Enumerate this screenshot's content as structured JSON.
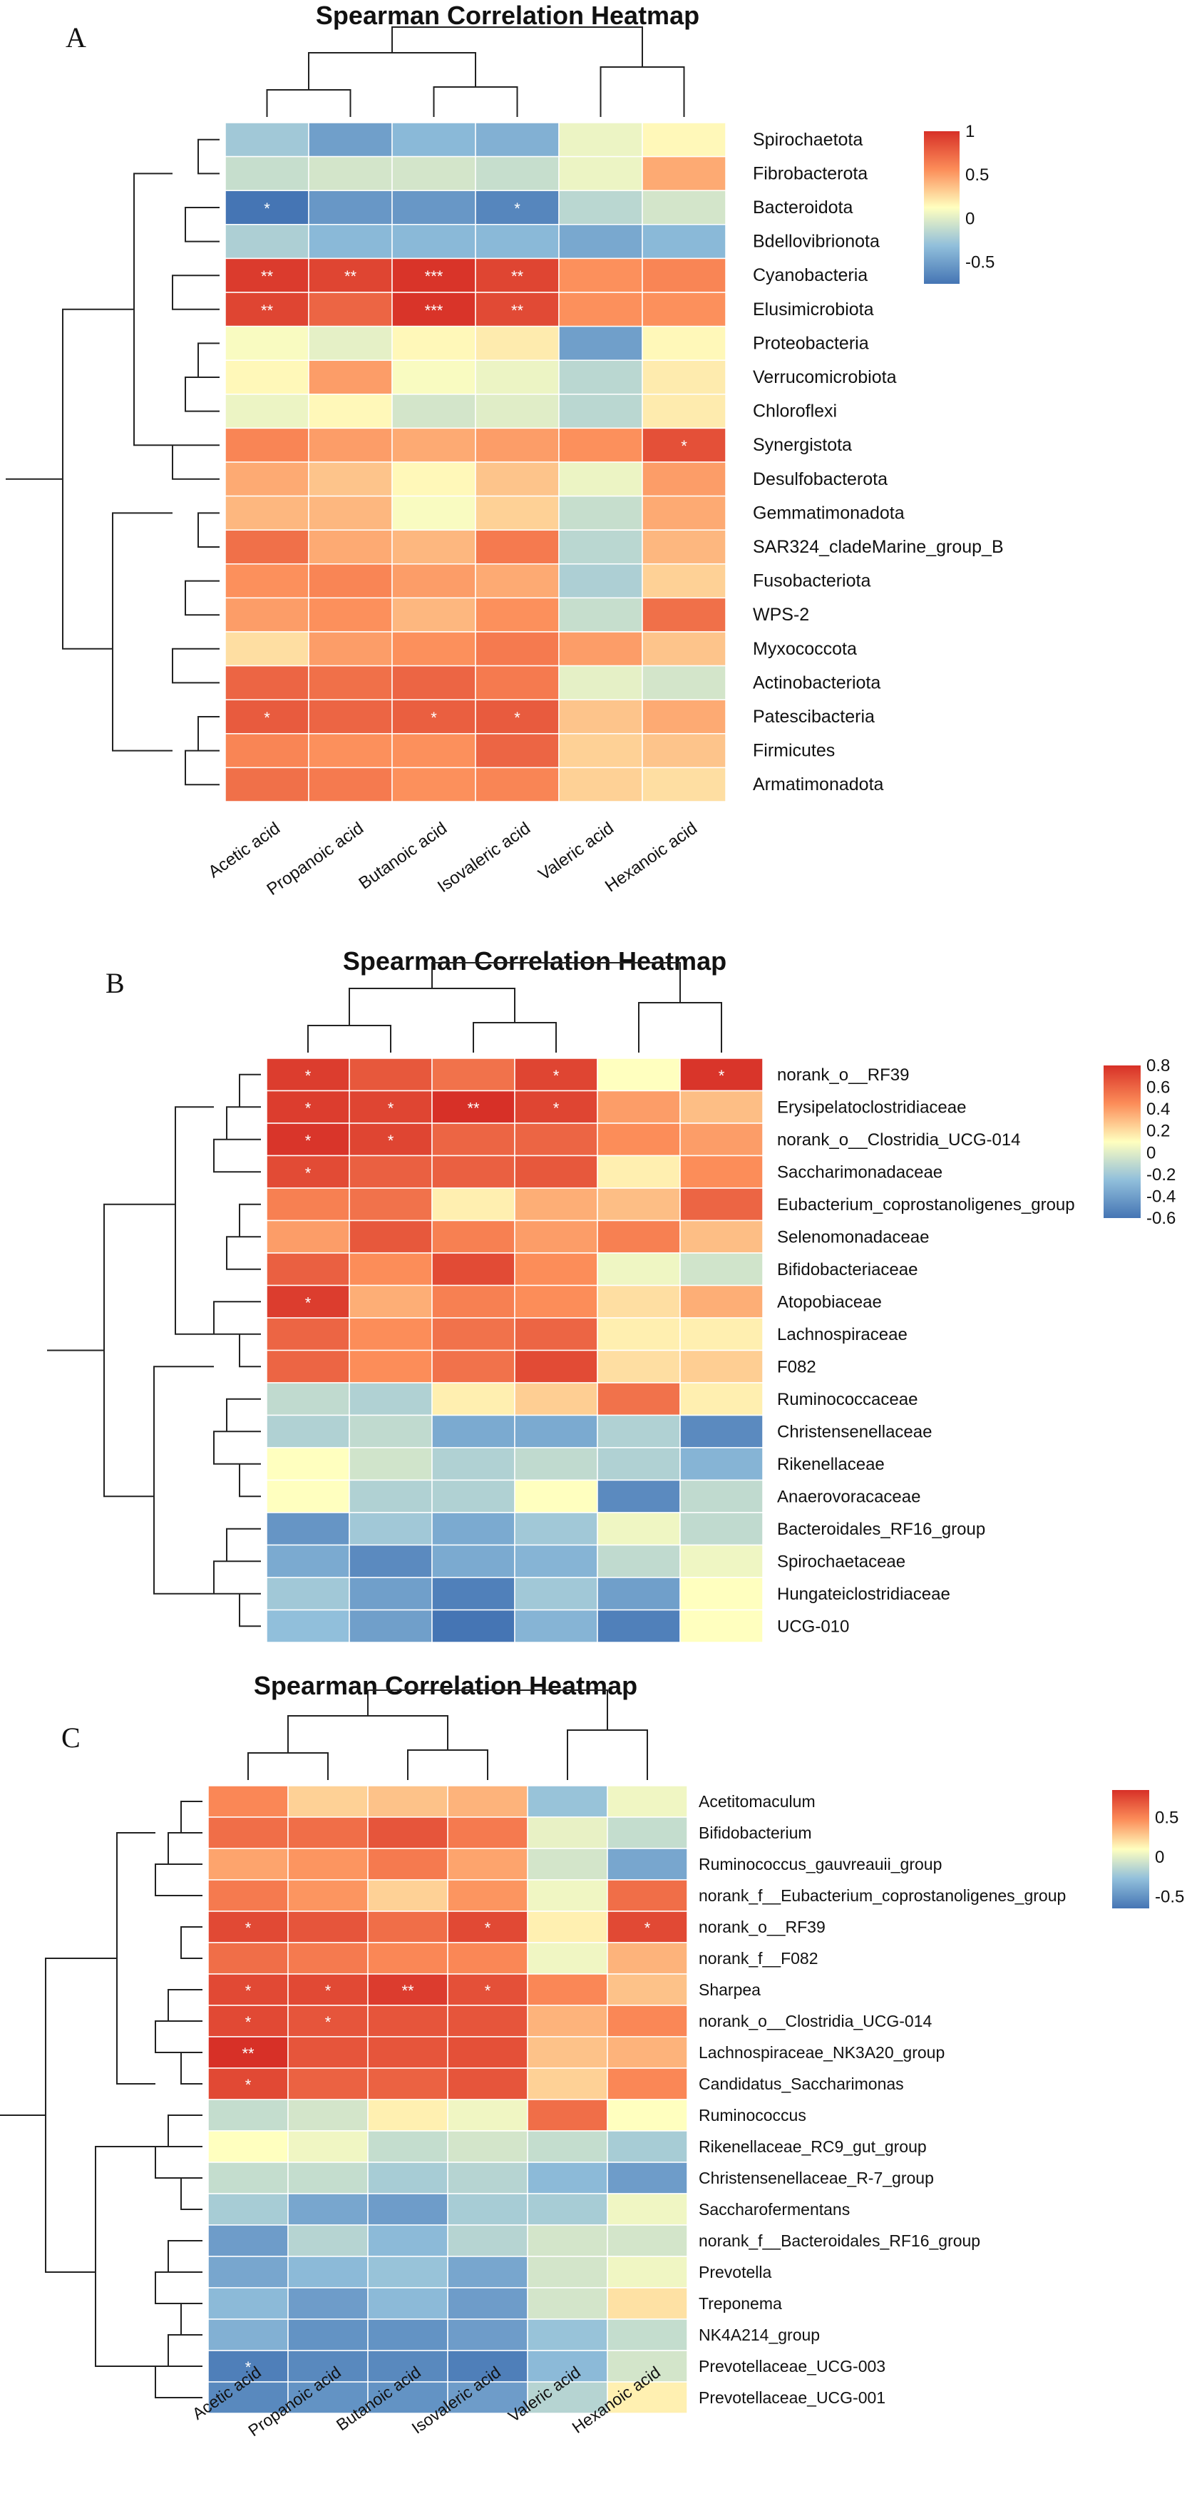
{
  "chart_data": [
    {
      "type": "heatmap",
      "panel_label": "A",
      "title": "Spearman Correlation Heatmap",
      "columns": [
        "Acetic acid",
        "Propanoic acid",
        "Butanoic acid",
        "Isovaleric acid",
        "Valeric acid",
        "Hexanoic acid"
      ],
      "rows": [
        "Spirochaetota",
        "Fibrobacterota",
        "Bacteroidota",
        "Bdellovibrionota",
        "Cyanobacteria",
        "Elusimicrobiota",
        "Proteobacteria",
        "Verrucomicrobiota",
        "Chloroflexi",
        "Synergistota",
        "Desulfobacterota",
        "Gemmatimonadota",
        "SAR324_cladeMarine_group_B",
        "Fusobacteriota",
        "WPS-2",
        "Myxococcota",
        "Actinobacteriota",
        "Patescibacteria",
        "Firmicutes",
        "Armatimonadota"
      ],
      "values": [
        [
          -0.25,
          -0.5,
          -0.35,
          -0.4,
          0.05,
          0.15
        ],
        [
          -0.1,
          -0.05,
          -0.05,
          -0.1,
          0.05,
          0.45
        ],
        [
          -0.75,
          -0.55,
          -0.55,
          -0.65,
          -0.15,
          -0.05
        ],
        [
          -0.2,
          -0.35,
          -0.35,
          -0.35,
          -0.45,
          -0.35
        ],
        [
          0.95,
          0.9,
          0.98,
          0.9,
          0.55,
          0.6
        ],
        [
          0.9,
          0.75,
          0.98,
          0.88,
          0.55,
          0.55
        ],
        [
          0.1,
          0.02,
          0.15,
          0.2,
          -0.5,
          0.15
        ],
        [
          0.15,
          0.5,
          0.1,
          0.05,
          -0.15,
          0.2
        ],
        [
          0.05,
          0.15,
          -0.05,
          0.0,
          -0.15,
          0.2
        ],
        [
          0.6,
          0.5,
          0.45,
          0.5,
          0.55,
          0.85
        ],
        [
          0.45,
          0.35,
          0.15,
          0.35,
          0.05,
          0.5
        ],
        [
          0.4,
          0.4,
          0.1,
          0.3,
          -0.1,
          0.45
        ],
        [
          0.7,
          0.45,
          0.4,
          0.65,
          -0.15,
          0.4
        ],
        [
          0.55,
          0.6,
          0.5,
          0.45,
          -0.2,
          0.3
        ],
        [
          0.5,
          0.55,
          0.4,
          0.55,
          -0.1,
          0.7
        ],
        [
          0.25,
          0.5,
          0.55,
          0.65,
          0.5,
          0.35
        ],
        [
          0.75,
          0.7,
          0.75,
          0.65,
          0.02,
          -0.05
        ],
        [
          0.8,
          0.75,
          0.78,
          0.8,
          0.35,
          0.45
        ],
        [
          0.6,
          0.55,
          0.55,
          0.75,
          0.3,
          0.35
        ],
        [
          0.7,
          0.65,
          0.55,
          0.6,
          0.3,
          0.25
        ]
      ],
      "significance": [
        [
          "",
          "",
          "",
          "",
          "",
          ""
        ],
        [
          "",
          "",
          "",
          "",
          "",
          ""
        ],
        [
          "*",
          "",
          "",
          "*",
          "",
          ""
        ],
        [
          "",
          "",
          "",
          "",
          "",
          ""
        ],
        [
          "**",
          "**",
          "***",
          "**",
          "",
          ""
        ],
        [
          "**",
          "",
          "***",
          "**",
          "",
          ""
        ],
        [
          "",
          "",
          "",
          "",
          "",
          ""
        ],
        [
          "",
          "",
          "",
          "",
          "",
          ""
        ],
        [
          "",
          "",
          "",
          "",
          "",
          ""
        ],
        [
          "",
          "",
          "",
          "",
          "",
          "*"
        ],
        [
          "",
          "",
          "",
          "",
          "",
          ""
        ],
        [
          "",
          "",
          "",
          "",
          "",
          ""
        ],
        [
          "",
          "",
          "",
          "",
          "",
          ""
        ],
        [
          "",
          "",
          "",
          "",
          "",
          ""
        ],
        [
          "",
          "",
          "",
          "",
          "",
          ""
        ],
        [
          "",
          "",
          "",
          "",
          "",
          ""
        ],
        [
          "",
          "",
          "",
          "",
          "",
          ""
        ],
        [
          "*",
          "",
          "*",
          "*",
          "",
          ""
        ],
        [
          "",
          "",
          "",
          "",
          "",
          ""
        ],
        [
          "",
          "",
          "",
          "",
          "",
          ""
        ]
      ],
      "scale": {
        "min": -0.75,
        "max": 1.0,
        "ticks": [
          "1",
          "0.5",
          "0",
          "-0.5"
        ],
        "tick_values": [
          1,
          0.5,
          0,
          -0.5
        ]
      }
    },
    {
      "type": "heatmap",
      "panel_label": "B",
      "title": "Spearman Correlation Heatmap",
      "columns": [
        "Acetic acid",
        "Propanoic acid",
        "Butanoic acid",
        "Isovaleric acid",
        "Valeric acid",
        "Hexanoic acid"
      ],
      "rows": [
        "norank_o__RF39",
        "Erysipelatoclostridiaceae",
        "norank_o__Clostridia_UCG-014",
        "Saccharimonadaceae",
        "Eubacterium_coprostanoligenes_group",
        "Selenomonadaceae",
        "Bifidobacteriaceae",
        "Atopobiaceae",
        "Lachnospiraceae",
        "F082",
        "Ruminococcaceae",
        "Christensenellaceae",
        "Rikenellaceae",
        "Anaerovoracaceae",
        "Bacteroidales_RF16_group",
        "Spirochaetaceae",
        "Hungateiclostridiaceae",
        "UCG-010"
      ],
      "values": [
        [
          0.75,
          0.65,
          0.55,
          0.72,
          0.1,
          0.78
        ],
        [
          0.75,
          0.72,
          0.82,
          0.72,
          0.4,
          0.3
        ],
        [
          0.78,
          0.72,
          0.6,
          0.6,
          0.45,
          0.4
        ],
        [
          0.7,
          0.62,
          0.62,
          0.65,
          0.15,
          0.45
        ],
        [
          0.5,
          0.55,
          0.15,
          0.35,
          0.3,
          0.6
        ],
        [
          0.4,
          0.65,
          0.5,
          0.4,
          0.5,
          0.3
        ],
        [
          0.62,
          0.45,
          0.7,
          0.45,
          0.05,
          -0.05
        ],
        [
          0.75,
          0.35,
          0.5,
          0.45,
          0.2,
          0.35
        ],
        [
          0.6,
          0.45,
          0.55,
          0.6,
          0.15,
          0.15
        ],
        [
          0.6,
          0.45,
          0.55,
          0.7,
          0.2,
          0.25
        ],
        [
          -0.1,
          -0.15,
          0.15,
          0.25,
          0.55,
          0.15
        ],
        [
          -0.15,
          -0.1,
          -0.35,
          -0.35,
          -0.15,
          -0.5
        ],
        [
          0.1,
          -0.05,
          -0.15,
          -0.1,
          -0.15,
          -0.3
        ],
        [
          0.1,
          -0.15,
          -0.15,
          0.1,
          -0.5,
          -0.1
        ],
        [
          -0.45,
          -0.2,
          -0.35,
          -0.2,
          0.05,
          -0.1
        ],
        [
          -0.35,
          -0.5,
          -0.35,
          -0.3,
          -0.1,
          0.05
        ],
        [
          -0.2,
          -0.4,
          -0.55,
          -0.2,
          -0.4,
          0.1
        ],
        [
          -0.25,
          -0.4,
          -0.6,
          -0.3,
          -0.55,
          0.1
        ]
      ],
      "significance": [
        [
          "*",
          "",
          "",
          "*",
          "",
          "*"
        ],
        [
          "*",
          "*",
          "**",
          "*",
          "",
          ""
        ],
        [
          "*",
          "*",
          "",
          "",
          "",
          ""
        ],
        [
          "*",
          "",
          "",
          "",
          "",
          ""
        ],
        [
          "",
          "",
          "",
          "",
          "",
          ""
        ],
        [
          "",
          "",
          "",
          "",
          "",
          ""
        ],
        [
          "",
          "",
          "",
          "",
          "",
          ""
        ],
        [
          "*",
          "",
          "",
          "",
          "",
          ""
        ],
        [
          "",
          "",
          "",
          "",
          "",
          ""
        ],
        [
          "",
          "",
          "",
          "",
          "",
          ""
        ],
        [
          "",
          "",
          "",
          "",
          "",
          ""
        ],
        [
          "",
          "",
          "",
          "",
          "",
          ""
        ],
        [
          "",
          "",
          "",
          "",
          "",
          ""
        ],
        [
          "",
          "",
          "",
          "",
          "",
          ""
        ],
        [
          "",
          "",
          "",
          "",
          "",
          ""
        ],
        [
          "",
          "",
          "",
          "",
          "",
          ""
        ],
        [
          "",
          "",
          "",
          "",
          "",
          ""
        ],
        [
          "",
          "",
          "",
          "",
          "",
          ""
        ]
      ],
      "scale": {
        "min": -0.6,
        "max": 0.8,
        "ticks": [
          "0.8",
          "0.6",
          "0.4",
          "0.2",
          "0",
          "-0.2",
          "-0.4",
          "-0.6"
        ],
        "tick_values": [
          0.8,
          0.6,
          0.4,
          0.2,
          0,
          -0.2,
          -0.4,
          -0.6
        ]
      }
    },
    {
      "type": "heatmap",
      "panel_label": "C",
      "title": "Spearman Correlation Heatmap",
      "columns": [
        "Acetic acid",
        "Propanoic acid",
        "Butanoic acid",
        "Isovaleric acid",
        "Valeric acid",
        "Hexanoic acid"
      ],
      "rows": [
        "Acetitomaculum",
        "Bifidobacterium",
        "Ruminococcus_gauvreauii_group",
        "norank_f__Eubacterium_coprostanoligenes_group",
        "norank_o__RF39",
        "norank_f__F082",
        "Sharpea",
        "norank_o__Clostridia_UCG-014",
        "Lachnospiraceae_NK3A20_group",
        "Candidatus_Saccharimonas",
        "Ruminococcus",
        "Rikenellaceae_RC9_gut_group",
        "Christensenellaceae_R-7_group",
        "Saccharofermentans",
        "norank_f__Bacteroidales_RF16_group",
        "Prevotella",
        "Treponema",
        "NK4A214_group",
        "Prevotellaceae_UCG-003",
        "Prevotellaceae_UCG-001"
      ],
      "values": [
        [
          0.5,
          0.25,
          0.3,
          0.35,
          -0.25,
          0.05
        ],
        [
          0.6,
          0.6,
          0.7,
          0.55,
          0.02,
          -0.1
        ],
        [
          0.4,
          0.45,
          0.55,
          0.4,
          -0.05,
          -0.4
        ],
        [
          0.55,
          0.45,
          0.25,
          0.45,
          0.05,
          0.6
        ],
        [
          0.75,
          0.7,
          0.6,
          0.75,
          0.15,
          0.75
        ],
        [
          0.6,
          0.55,
          0.5,
          0.5,
          0.05,
          0.35
        ],
        [
          0.75,
          0.75,
          0.8,
          0.72,
          0.5,
          0.3
        ],
        [
          0.75,
          0.7,
          0.7,
          0.7,
          0.35,
          0.5
        ],
        [
          0.85,
          0.7,
          0.7,
          0.72,
          0.3,
          0.35
        ],
        [
          0.75,
          0.65,
          0.65,
          0.7,
          0.25,
          0.5
        ],
        [
          -0.1,
          -0.05,
          0.15,
          0.05,
          0.6,
          0.1
        ],
        [
          0.1,
          0.05,
          -0.1,
          -0.05,
          -0.1,
          -0.2
        ],
        [
          -0.1,
          -0.1,
          -0.2,
          -0.15,
          -0.3,
          -0.45
        ],
        [
          -0.2,
          -0.4,
          -0.45,
          -0.2,
          -0.2,
          0.05
        ],
        [
          -0.45,
          -0.15,
          -0.3,
          -0.15,
          -0.05,
          -0.05
        ],
        [
          -0.4,
          -0.3,
          -0.25,
          -0.4,
          -0.05,
          0.05
        ],
        [
          -0.3,
          -0.45,
          -0.3,
          -0.45,
          -0.05,
          0.2
        ],
        [
          -0.35,
          -0.5,
          -0.5,
          -0.45,
          -0.25,
          -0.1
        ],
        [
          -0.6,
          -0.55,
          -0.55,
          -0.6,
          -0.3,
          -0.05
        ],
        [
          -0.55,
          -0.5,
          -0.5,
          -0.45,
          -0.15,
          0.15
        ]
      ],
      "significance": [
        [
          "",
          "",
          "",
          "",
          "",
          ""
        ],
        [
          "",
          "",
          "",
          "",
          "",
          ""
        ],
        [
          "",
          "",
          "",
          "",
          "",
          ""
        ],
        [
          "",
          "",
          "",
          "",
          "",
          ""
        ],
        [
          "*",
          "",
          "",
          "*",
          "",
          "*"
        ],
        [
          "",
          "",
          "",
          "",
          "",
          ""
        ],
        [
          "*",
          "*",
          "**",
          "*",
          "",
          ""
        ],
        [
          "*",
          "*",
          "",
          "",
          "",
          ""
        ],
        [
          "**",
          "",
          "",
          "",
          "",
          ""
        ],
        [
          "*",
          "",
          "",
          "",
          "",
          ""
        ],
        [
          "",
          "",
          "",
          "",
          "",
          ""
        ],
        [
          "",
          "",
          "",
          "",
          "",
          ""
        ],
        [
          "",
          "",
          "",
          "",
          "",
          ""
        ],
        [
          "",
          "",
          "",
          "",
          "",
          ""
        ],
        [
          "",
          "",
          "",
          "",
          "",
          ""
        ],
        [
          "",
          "",
          "",
          "",
          "",
          ""
        ],
        [
          "",
          "",
          "",
          "",
          "",
          ""
        ],
        [
          "",
          "",
          "",
          "",
          "",
          ""
        ],
        [
          "*",
          "",
          "",
          "",
          "",
          ""
        ],
        [
          "",
          "",
          "",
          "",
          "",
          ""
        ]
      ],
      "scale": {
        "min": -0.65,
        "max": 0.85,
        "ticks": [
          "0.5",
          "0",
          "-0.5"
        ],
        "tick_values": [
          0.5,
          0,
          -0.5
        ]
      }
    }
  ],
  "palette": {
    "low": "#4575b4",
    "mid_low": "#91bfdb",
    "mid": "#ffffbf",
    "mid_high": "#fc8d59",
    "high": "#d73027",
    "grid": "#ffffff",
    "text": "#111111",
    "dendrogram": "#222222"
  }
}
